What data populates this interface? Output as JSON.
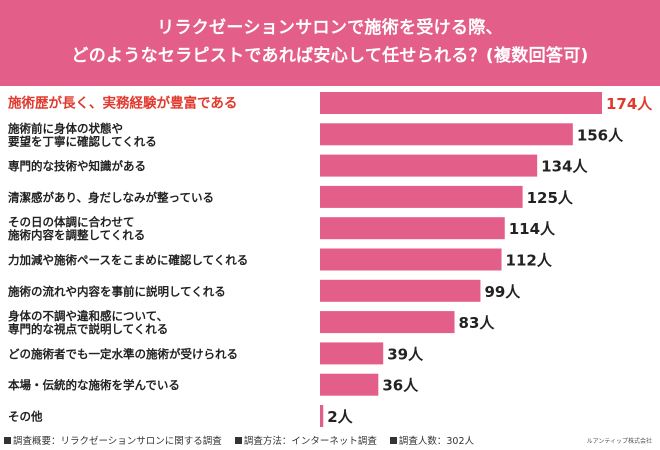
{
  "header": {
    "title_line1": "リラクゼーションサロンで施術を受ける際、",
    "title_line2": "どのようなセラピストであれば安心して任せられる？(複数回答可)"
  },
  "chart_data": {
    "type": "bar",
    "orientation": "horizontal",
    "title": "リラクゼーションサロンで施術を受ける際、どのようなセラピストであれば安心して任せられる？(複数回答可)",
    "unit": "人",
    "categories": [
      [
        "施術歴が長く、実務経験が豊富である"
      ],
      [
        "施術前に身体の状態や",
        "要望を丁寧に確認してくれる"
      ],
      [
        "専門的な技術や知識がある"
      ],
      [
        "清潔感があり、身だしなみが整っている"
      ],
      [
        "その日の体調に合わせて",
        "施術内容を調整してくれる"
      ],
      [
        "力加減や施術ペースをこまめに確認してくれる"
      ],
      [
        "施術の流れや内容を事前に説明してくれる"
      ],
      [
        "身体の不調や違和感について、",
        "専門的な視点で説明してくれる"
      ],
      [
        "どの施術者でも一定水準の施術が受けられる"
      ],
      [
        "本場・伝統的な施術を学んでいる"
      ],
      [
        "その他"
      ]
    ],
    "values": [
      174,
      156,
      134,
      125,
      114,
      112,
      99,
      83,
      39,
      36,
      2
    ],
    "value_labels": [
      "174人",
      "156人",
      "134人",
      "125人",
      "114人",
      "112人",
      "99人",
      "83人",
      "39人",
      "36人",
      "2人"
    ],
    "highlight_index": 0,
    "xlim": [
      0,
      174
    ],
    "grid": false,
    "colors": {
      "bar": "#e35f8a",
      "highlight_text": "#e03a2e",
      "text": "#222222"
    }
  },
  "footer": {
    "survey_overview": "調査概要：リラクゼーションサロンに関する調査",
    "survey_method": "調査方法：インターネット調査",
    "respondents": "調査人数：302人",
    "brand": "ルアンティップ株式会社"
  }
}
